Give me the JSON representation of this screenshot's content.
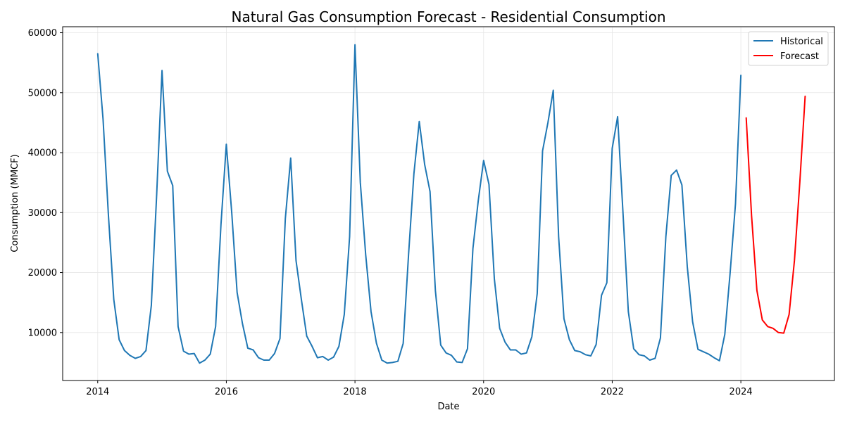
{
  "chart_data": {
    "type": "line",
    "title": "Natural Gas Consumption Forecast - Residential Consumption",
    "xlabel": "Date",
    "ylabel": "Consumption (MMCF)",
    "x_axis_type": "date",
    "xlim": [
      "2013-06-15",
      "2025-06-15"
    ],
    "ylim": [
      2000,
      61000
    ],
    "xticks": [
      "2014",
      "2016",
      "2018",
      "2020",
      "2022",
      "2024"
    ],
    "yticks": [
      10000,
      20000,
      30000,
      40000,
      50000,
      60000
    ],
    "grid": true,
    "legend_position": "top-right",
    "series": [
      {
        "name": "Historical",
        "color": "#1f77b4",
        "x": [
          "2014-01",
          "2014-02",
          "2014-03",
          "2014-04",
          "2014-05",
          "2014-06",
          "2014-07",
          "2014-08",
          "2014-09",
          "2014-10",
          "2014-11",
          "2014-12",
          "2015-01",
          "2015-02",
          "2015-03",
          "2015-04",
          "2015-05",
          "2015-06",
          "2015-07",
          "2015-08",
          "2015-09",
          "2015-10",
          "2015-11",
          "2015-12",
          "2016-01",
          "2016-02",
          "2016-03",
          "2016-04",
          "2016-05",
          "2016-06",
          "2016-07",
          "2016-08",
          "2016-09",
          "2016-10",
          "2016-11",
          "2016-12",
          "2017-01",
          "2017-02",
          "2017-03",
          "2017-04",
          "2017-05",
          "2017-06",
          "2017-07",
          "2017-08",
          "2017-09",
          "2017-10",
          "2017-11",
          "2017-12",
          "2018-01",
          "2018-02",
          "2018-03",
          "2018-04",
          "2018-05",
          "2018-06",
          "2018-07",
          "2018-08",
          "2018-09",
          "2018-10",
          "2018-11",
          "2018-12",
          "2019-01",
          "2019-02",
          "2019-03",
          "2019-04",
          "2019-05",
          "2019-06",
          "2019-07",
          "2019-08",
          "2019-09",
          "2019-10",
          "2019-11",
          "2019-12",
          "2020-01",
          "2020-02",
          "2020-03",
          "2020-04",
          "2020-05",
          "2020-06",
          "2020-07",
          "2020-08",
          "2020-09",
          "2020-10",
          "2020-11",
          "2020-12",
          "2021-01",
          "2021-02",
          "2021-03",
          "2021-04",
          "2021-05",
          "2021-06",
          "2021-07",
          "2021-08",
          "2021-09",
          "2021-10",
          "2021-11",
          "2021-12",
          "2022-01",
          "2022-02",
          "2022-03",
          "2022-04",
          "2022-05",
          "2022-06",
          "2022-07",
          "2022-08",
          "2022-09",
          "2022-10",
          "2022-11",
          "2022-12",
          "2023-01",
          "2023-02",
          "2023-03",
          "2023-04",
          "2023-05",
          "2023-06",
          "2023-07",
          "2023-08",
          "2023-09",
          "2023-10",
          "2023-11",
          "2023-12",
          "2024-01"
        ],
        "y": [
          56500,
          45500,
          29500,
          15500,
          8800,
          7000,
          6200,
          5700,
          6000,
          7000,
          14500,
          33000,
          53700,
          36900,
          34500,
          11000,
          6900,
          6400,
          6500,
          4900,
          5400,
          6400,
          11000,
          28000,
          41400,
          30000,
          16700,
          11500,
          7400,
          7100,
          5800,
          5400,
          5400,
          6500,
          9000,
          29000,
          39100,
          22000,
          15500,
          9400,
          7700,
          5800,
          6000,
          5400,
          5900,
          7700,
          13000,
          26000,
          58000,
          35000,
          23000,
          13500,
          8200,
          5400,
          4900,
          5000,
          5200,
          8200,
          23000,
          36500,
          45200,
          38000,
          33500,
          17000,
          7900,
          6600,
          6200,
          5100,
          5000,
          7300,
          24000,
          32000,
          38700,
          34700,
          19000,
          10700,
          8400,
          7100,
          7100,
          6400,
          6600,
          9300,
          16500,
          40300,
          45000,
          50400,
          26000,
          12300,
          8800,
          7000,
          6800,
          6300,
          6100,
          8000,
          16200,
          18300,
          40700,
          46000,
          30000,
          13500,
          7300,
          6300,
          6100,
          5400,
          5700,
          9100,
          26000,
          36200,
          37100,
          34600,
          21000,
          11800,
          7200,
          6800,
          6400,
          5800,
          5300,
          9700,
          20000,
          31500,
          52900
        ]
      },
      {
        "name": "Forecast",
        "color": "#ff0000",
        "x": [
          "2024-02",
          "2024-03",
          "2024-04",
          "2024-05",
          "2024-06",
          "2024-07",
          "2024-08",
          "2024-09",
          "2024-10",
          "2024-11",
          "2024-12",
          "2025-01"
        ],
        "y": [
          45800,
          29500,
          17000,
          12100,
          11000,
          10700,
          10000,
          9900,
          13000,
          22000,
          35000,
          49400
        ]
      }
    ]
  }
}
